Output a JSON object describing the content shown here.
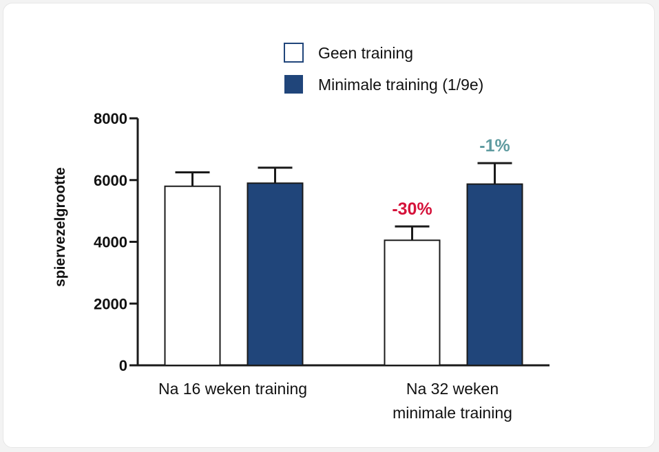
{
  "colors": {
    "series_fill_1": "#ffffff",
    "series_fill_2": "#20457a",
    "stroke": "#1a1a1a",
    "legend_outline": "#20457a",
    "annotation_red": "#d5123a",
    "annotation_teal": "#5f9ba0"
  },
  "chart_data": {
    "type": "bar",
    "categories": [
      "Na 16 weken training",
      "Na 32 weken minimale training"
    ],
    "category_lines": [
      [
        "Na 16 weken training"
      ],
      [
        "Na 32 weken",
        "minimale training"
      ]
    ],
    "series": [
      {
        "name": "Geen training",
        "values": [
          5800,
          4050
        ],
        "errors": [
          450,
          450
        ]
      },
      {
        "name": "Minimale training (1/9e)",
        "values": [
          5900,
          5870
        ],
        "errors": [
          500,
          680
        ]
      }
    ],
    "ylabel": "spiervezelgrootte",
    "xlabel": "",
    "ylim": [
      0,
      8000
    ],
    "yticks": [
      0,
      2000,
      4000,
      6000,
      8000
    ],
    "annotations": [
      {
        "text": "-30%",
        "category": 1,
        "series": 0,
        "color": "#d5123a"
      },
      {
        "text": "-1%",
        "category": 1,
        "series": 1,
        "color": "#5f9ba0"
      }
    ],
    "legend_position": "top-right",
    "grid": false
  }
}
